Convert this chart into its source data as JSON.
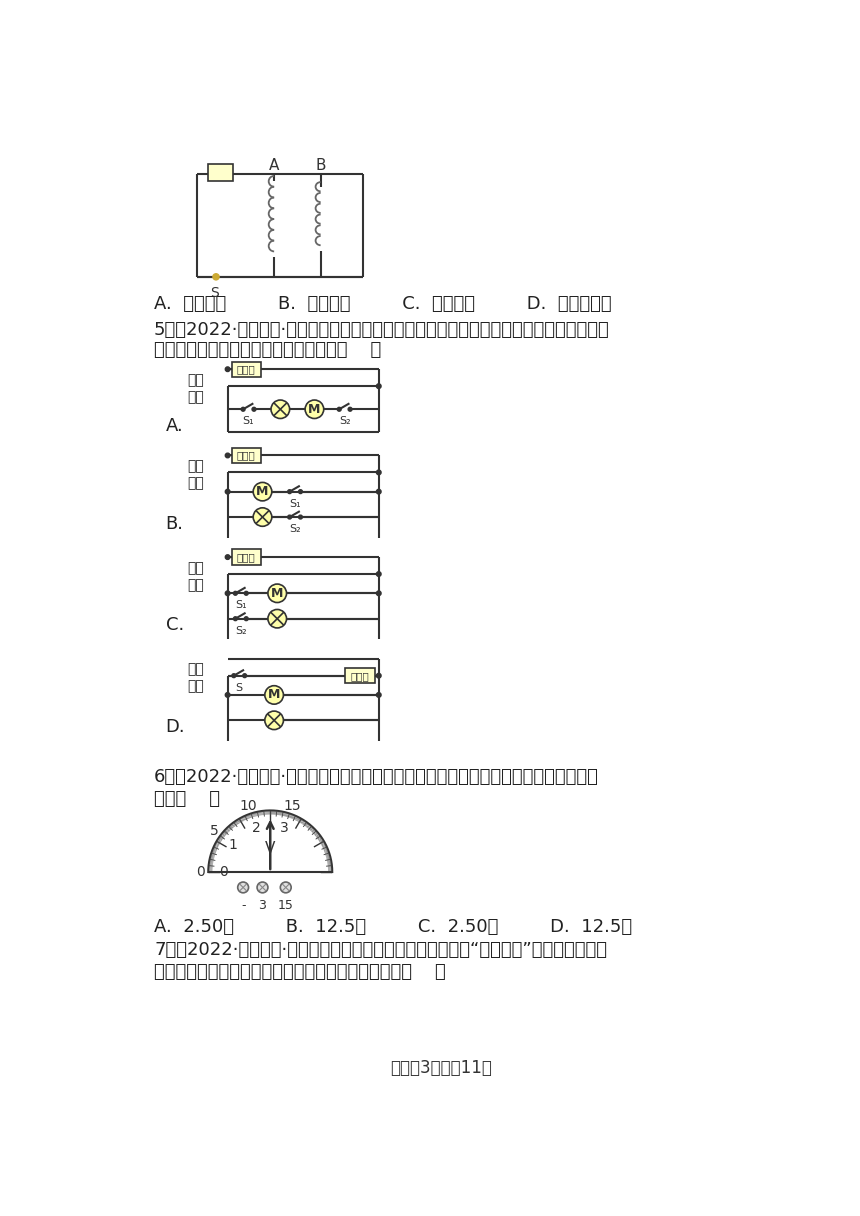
{
  "background_color": "#ffffff",
  "line_color": "#333333",
  "circuit_color": "#333333",
  "fuse_fill": "#ffffcc",
  "component_fill": "#ffffaa",
  "options_line": "A.  电流大小         B.  线圈匡数         C.  电流方向         D.  电磁铁极性",
  "q5_text1": "5．（2022·浙江丽水·中考真题）某油烟机具有排气和照明的功能，这两种功能既可单独、",
  "q5_text2": "也可同时使用。下列电路符合要求的是（    ）",
  "q6_text1": "6．（2022·浙江台州·中考真题）某次实验时，电表的接线和指针的位置如图所示，其示",
  "q6_text2": "数为（    ）",
  "q6_answers": "A.  2.50伏         B.  12.5伏         C.  2.50安         D.  12.5安",
  "q7_text1": "7．（2022·浙江台州·中考真题）某同学做了一个如图所示的“魔法火炰”实验：加热铅笔",
  "q7_text2": "芚时，小灯泡慢慢亮了起来！下列有关判断正确的是（    ）",
  "footer": "试卷第3页，共11页",
  "label_huoxian": "火线",
  "label_lingxian": "零线",
  "label_fuse": "保险丝"
}
